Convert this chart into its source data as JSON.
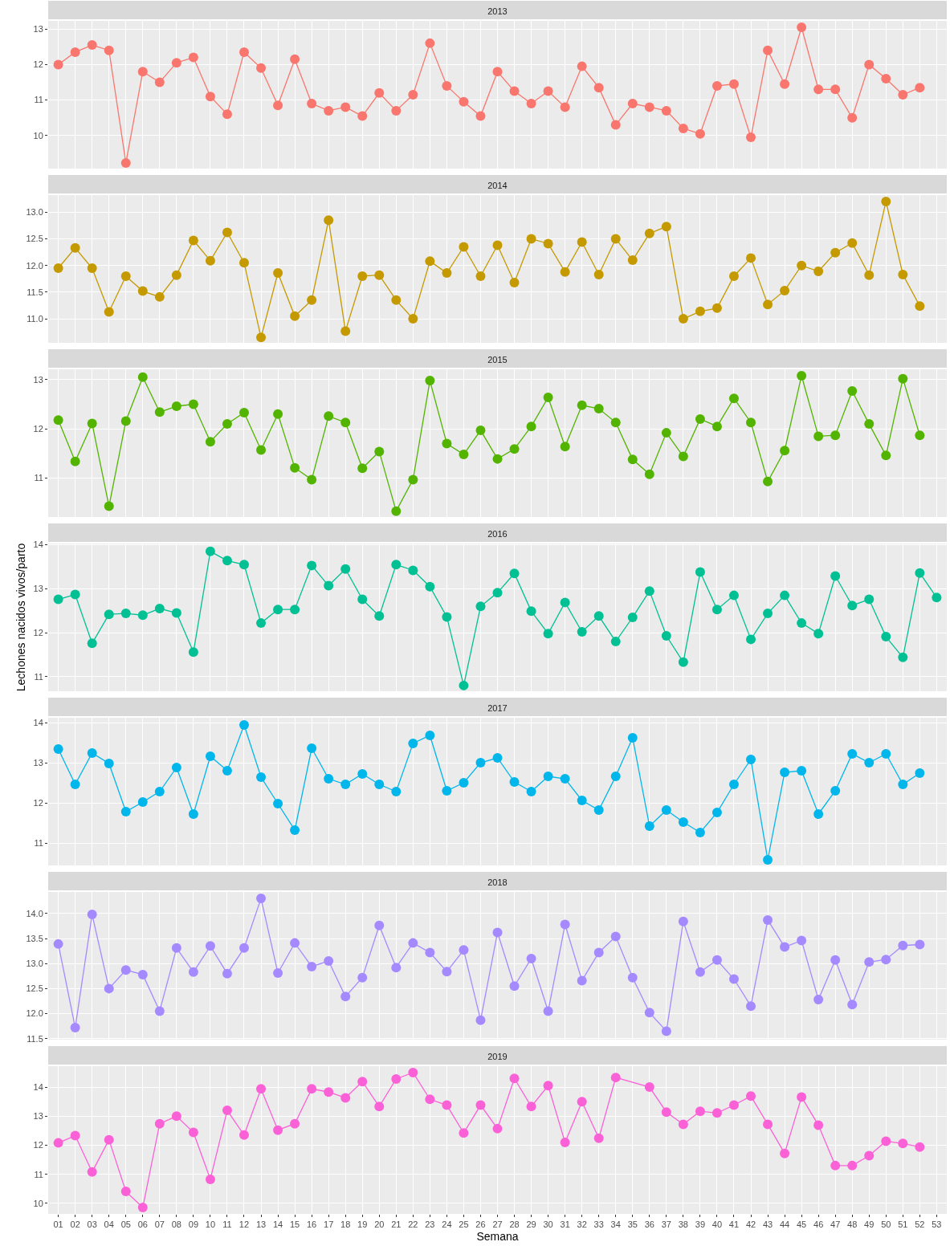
{
  "chart_data": [
    {
      "type": "line",
      "title": "2013",
      "categories": [
        "01",
        "02",
        "03",
        "04",
        "05",
        "06",
        "07",
        "08",
        "09",
        "10",
        "11",
        "12",
        "13",
        "14",
        "15",
        "16",
        "17",
        "18",
        "19",
        "20",
        "21",
        "22",
        "23",
        "24",
        "25",
        "26",
        "27",
        "28",
        "29",
        "30",
        "31",
        "32",
        "33",
        "34",
        "35",
        "36",
        "37",
        "38",
        "39",
        "40",
        "41",
        "42",
        "43",
        "44",
        "45",
        "46",
        "47",
        "48",
        "49",
        "50",
        "51",
        "52",
        "53"
      ],
      "ylim": [
        9.07,
        13.23
      ],
      "yticks": [
        10,
        11,
        12,
        13
      ],
      "grid": true,
      "marker": "circle",
      "line_style": "solid",
      "tick_labels": "y",
      "series": [
        {
          "color": "#f8766d",
          "values": [
            12.0,
            12.35,
            12.55,
            12.4,
            9.23,
            11.8,
            11.5,
            12.05,
            12.2,
            11.1,
            10.6,
            12.35,
            11.9,
            10.85,
            12.15,
            10.9,
            10.7,
            10.8,
            10.55,
            11.2,
            10.7,
            11.15,
            12.6,
            11.4,
            10.95,
            10.55,
            11.8,
            11.25,
            10.9,
            11.25,
            10.8,
            11.95,
            11.35,
            10.3,
            10.9,
            10.8,
            10.7,
            10.2,
            10.05,
            11.4,
            11.45,
            9.95,
            12.4,
            11.45,
            13.05,
            11.3,
            11.3,
            10.5,
            12.0,
            11.6,
            11.15,
            11.35,
            null
          ]
        }
      ]
    },
    {
      "type": "line",
      "title": "2014",
      "categories": [
        "01",
        "02",
        "03",
        "04",
        "05",
        "06",
        "07",
        "08",
        "09",
        "10",
        "11",
        "12",
        "13",
        "14",
        "15",
        "16",
        "17",
        "18",
        "19",
        "20",
        "21",
        "22",
        "23",
        "24",
        "25",
        "26",
        "27",
        "28",
        "29",
        "30",
        "31",
        "32",
        "33",
        "34",
        "35",
        "36",
        "37",
        "38",
        "39",
        "40",
        "41",
        "42",
        "43",
        "44",
        "45",
        "46",
        "47",
        "48",
        "49",
        "50",
        "51",
        "52",
        "53"
      ],
      "ylim": [
        10.55,
        13.32
      ],
      "yticks": [
        {
          "value": 11,
          "label": "11.0"
        },
        {
          "value": 11.5,
          "label": "11.5"
        },
        {
          "value": 12,
          "label": "12.0"
        },
        {
          "value": 12.5,
          "label": "12.5"
        },
        {
          "value": 13,
          "label": "13.0"
        }
      ],
      "grid": true,
      "marker": "circle",
      "line_style": "solid",
      "tick_labels": "y",
      "series": [
        {
          "color": "#c49a00",
          "values": [
            11.95,
            12.33,
            11.95,
            11.13,
            11.8,
            11.52,
            11.41,
            11.82,
            12.47,
            12.09,
            12.62,
            12.05,
            10.65,
            11.86,
            11.05,
            11.35,
            12.85,
            10.77,
            11.8,
            11.82,
            11.35,
            11.0,
            12.08,
            11.86,
            12.35,
            11.8,
            12.38,
            11.68,
            12.5,
            12.41,
            11.88,
            12.44,
            11.83,
            12.5,
            12.1,
            12.6,
            12.73,
            11.0,
            11.14,
            11.2,
            11.8,
            12.14,
            11.27,
            11.53,
            12.0,
            11.89,
            12.24,
            12.42,
            11.82,
            13.2,
            11.83,
            11.24,
            null
          ]
        }
      ]
    },
    {
      "type": "line",
      "title": "2015",
      "categories": [
        "01",
        "02",
        "03",
        "04",
        "05",
        "06",
        "07",
        "08",
        "09",
        "10",
        "11",
        "12",
        "13",
        "14",
        "15",
        "16",
        "17",
        "18",
        "19",
        "20",
        "21",
        "22",
        "23",
        "24",
        "25",
        "26",
        "27",
        "28",
        "29",
        "30",
        "31",
        "32",
        "33",
        "34",
        "35",
        "36",
        "37",
        "38",
        "39",
        "40",
        "41",
        "42",
        "43",
        "44",
        "45",
        "46",
        "47",
        "48",
        "49",
        "50",
        "51",
        "52",
        "53"
      ],
      "ylim": [
        10.21,
        13.21
      ],
      "yticks": [
        11,
        12,
        13
      ],
      "grid": true,
      "marker": "circle",
      "line_style": "solid",
      "tick_labels": "y",
      "series": [
        {
          "color": "#53b400",
          "values": [
            12.18,
            11.34,
            12.11,
            10.43,
            12.16,
            13.05,
            12.34,
            12.46,
            12.5,
            11.74,
            12.1,
            12.33,
            11.57,
            12.3,
            11.21,
            10.97,
            12.26,
            12.13,
            11.2,
            11.54,
            10.33,
            10.97,
            12.98,
            11.7,
            11.48,
            11.97,
            11.39,
            11.59,
            12.05,
            12.64,
            11.64,
            12.48,
            12.41,
            12.13,
            11.38,
            11.08,
            11.92,
            11.44,
            12.2,
            12.05,
            12.62,
            12.13,
            10.93,
            11.56,
            13.08,
            11.85,
            11.87,
            12.77,
            12.1,
            11.46,
            13.02,
            11.87,
            null
          ]
        }
      ]
    },
    {
      "type": "line",
      "title": "2016",
      "ylabel": "Lechones nacidos vivos/parto",
      "categories": [
        "01",
        "02",
        "03",
        "04",
        "05",
        "06",
        "07",
        "08",
        "09",
        "10",
        "11",
        "12",
        "13",
        "14",
        "15",
        "16",
        "17",
        "18",
        "19",
        "20",
        "21",
        "22",
        "23",
        "24",
        "25",
        "26",
        "27",
        "28",
        "29",
        "30",
        "31",
        "32",
        "33",
        "34",
        "35",
        "36",
        "37",
        "38",
        "39",
        "40",
        "41",
        "42",
        "43",
        "44",
        "45",
        "46",
        "47",
        "48",
        "49",
        "50",
        "51",
        "52",
        "53"
      ],
      "ylim": [
        10.67,
        14.03
      ],
      "yticks": [
        11,
        12,
        13,
        14
      ],
      "grid": true,
      "marker": "circle",
      "line_style": "solid",
      "tick_labels": "y",
      "series": [
        {
          "color": "#00c094",
          "values": [
            12.76,
            12.87,
            11.76,
            12.42,
            12.44,
            12.4,
            12.55,
            12.45,
            11.56,
            13.85,
            13.64,
            13.55,
            12.22,
            12.53,
            12.53,
            13.53,
            13.07,
            13.45,
            12.76,
            12.38,
            13.55,
            13.42,
            13.05,
            12.36,
            10.8,
            12.6,
            12.91,
            13.35,
            12.49,
            11.98,
            12.69,
            12.02,
            12.38,
            11.8,
            12.35,
            12.95,
            11.93,
            11.33,
            13.38,
            12.53,
            12.85,
            11.85,
            12.44,
            12.85,
            12.22,
            11.98,
            13.29,
            12.62,
            12.76,
            11.91,
            11.44,
            13.36,
            12.8
          ]
        }
      ]
    },
    {
      "type": "line",
      "title": "2017",
      "categories": [
        "01",
        "02",
        "03",
        "04",
        "05",
        "06",
        "07",
        "08",
        "09",
        "10",
        "11",
        "12",
        "13",
        "14",
        "15",
        "16",
        "17",
        "18",
        "19",
        "20",
        "21",
        "22",
        "23",
        "24",
        "25",
        "26",
        "27",
        "28",
        "29",
        "30",
        "31",
        "32",
        "33",
        "34",
        "35",
        "36",
        "37",
        "38",
        "39",
        "40",
        "41",
        "42",
        "43",
        "44",
        "45",
        "46",
        "47",
        "48",
        "49",
        "50",
        "51",
        "52",
        "53"
      ],
      "ylim": [
        10.44,
        14.12
      ],
      "yticks": [
        11,
        12,
        13,
        14
      ],
      "grid": true,
      "marker": "circle",
      "line_style": "solid",
      "tick_labels": "y",
      "series": [
        {
          "color": "#00b6eb",
          "values": [
            13.34,
            12.46,
            13.24,
            12.98,
            11.78,
            12.02,
            12.28,
            12.88,
            11.72,
            13.16,
            12.8,
            13.94,
            12.64,
            11.98,
            11.32,
            13.36,
            12.6,
            12.46,
            12.72,
            12.46,
            12.28,
            13.48,
            13.68,
            12.3,
            12.5,
            13.0,
            13.12,
            12.52,
            12.28,
            12.66,
            12.6,
            12.06,
            11.82,
            12.66,
            13.62,
            11.42,
            11.82,
            11.52,
            11.26,
            11.76,
            12.46,
            13.08,
            10.58,
            12.76,
            12.8,
            11.72,
            12.3,
            13.22,
            13.0,
            13.22,
            12.46,
            12.74,
            null
          ]
        }
      ]
    },
    {
      "type": "line",
      "title": "2018",
      "categories": [
        "01",
        "02",
        "03",
        "04",
        "05",
        "06",
        "07",
        "08",
        "09",
        "10",
        "11",
        "12",
        "13",
        "14",
        "15",
        "16",
        "17",
        "18",
        "19",
        "20",
        "21",
        "22",
        "23",
        "24",
        "25",
        "26",
        "27",
        "28",
        "29",
        "30",
        "31",
        "32",
        "33",
        "34",
        "35",
        "36",
        "37",
        "38",
        "39",
        "40",
        "41",
        "42",
        "43",
        "44",
        "45",
        "46",
        "47",
        "48",
        "49",
        "50",
        "51",
        "52",
        "53"
      ],
      "ylim": [
        11.48,
        14.43
      ],
      "yticks": [
        {
          "value": 11.5,
          "label": "11.5"
        },
        {
          "value": 12,
          "label": "12.0"
        },
        {
          "value": 12.5,
          "label": "12.5"
        },
        {
          "value": 13,
          "label": "13.0"
        },
        {
          "value": 13.5,
          "label": "13.5"
        },
        {
          "value": 14,
          "label": "14.0"
        }
      ],
      "grid": true,
      "marker": "circle",
      "line_style": "solid",
      "tick_labels": "y",
      "series": [
        {
          "color": "#a58aff",
          "values": [
            13.39,
            11.72,
            13.98,
            12.5,
            12.87,
            12.78,
            12.05,
            13.31,
            12.83,
            13.35,
            12.8,
            13.31,
            14.3,
            12.81,
            13.41,
            12.94,
            13.05,
            12.34,
            12.72,
            13.76,
            12.92,
            13.41,
            13.22,
            12.84,
            13.27,
            11.87,
            13.62,
            12.55,
            13.1,
            12.05,
            13.78,
            12.66,
            13.22,
            13.54,
            12.72,
            12.02,
            11.65,
            13.84,
            12.83,
            13.07,
            12.69,
            12.15,
            13.87,
            13.33,
            13.46,
            12.28,
            13.07,
            12.18,
            13.03,
            13.08,
            13.36,
            13.38,
            null
          ]
        }
      ]
    },
    {
      "type": "line",
      "title": "2019",
      "xlabel": "Semana",
      "categories": [
        "01",
        "02",
        "03",
        "04",
        "05",
        "06",
        "07",
        "08",
        "09",
        "10",
        "11",
        "12",
        "13",
        "14",
        "15",
        "16",
        "17",
        "18",
        "19",
        "20",
        "21",
        "22",
        "23",
        "24",
        "25",
        "26",
        "27",
        "28",
        "29",
        "30",
        "31",
        "32",
        "33",
        "34",
        "35",
        "36",
        "37",
        "38",
        "39",
        "40",
        "41",
        "42",
        "43",
        "44",
        "45",
        "46",
        "47",
        "48",
        "49",
        "50",
        "51",
        "52",
        "53"
      ],
      "ylim": [
        9.64,
        14.72
      ],
      "yticks": [
        10,
        11,
        12,
        13,
        14
      ],
      "grid": true,
      "marker": "circle",
      "line_style": "solid",
      "series": [
        {
          "color": "#fb61d7",
          "values": [
            12.08,
            12.33,
            11.08,
            12.19,
            10.41,
            9.86,
            12.74,
            13.0,
            12.44,
            10.83,
            13.2,
            12.35,
            13.94,
            12.52,
            12.74,
            13.94,
            13.83,
            13.63,
            14.19,
            13.33,
            14.28,
            14.5,
            13.58,
            13.38,
            12.42,
            13.38,
            12.57,
            14.3,
            13.33,
            14.05,
            12.1,
            13.5,
            12.24,
            14.33,
            null,
            14.0,
            13.14,
            12.72,
            13.17,
            13.11,
            13.38,
            13.69,
            12.72,
            11.72,
            13.66,
            12.69,
            11.3,
            11.3,
            11.64,
            12.14,
            12.06,
            11.94,
            null
          ]
        }
      ]
    }
  ]
}
